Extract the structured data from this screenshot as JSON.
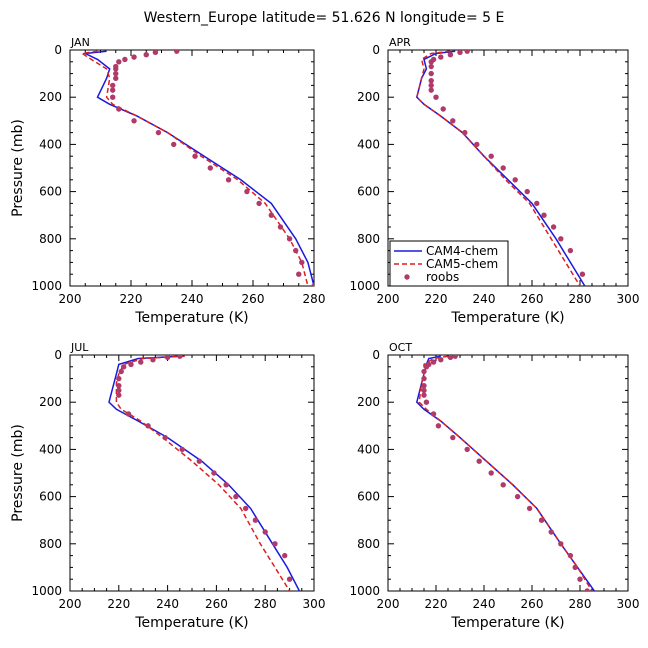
{
  "title": "Western_Europe  latitude= 51.626 N longitude= 5 E",
  "colors": {
    "cam4": "#1a1adf",
    "cam5": "#dd1f1f",
    "roobs": "#b03a6a",
    "axis": "#000000"
  },
  "legend": {
    "items": [
      "CAM4-chem",
      "CAM5-chem",
      "roobs"
    ]
  },
  "chart_data": [
    {
      "type": "line",
      "panel": "JAN",
      "xlabel": "Temperature (K)",
      "ylabel": "Pressure (mb)",
      "xlim": [
        200,
        280
      ],
      "ylim": [
        1000,
        0
      ],
      "xticks": [
        "200",
        "220",
        "240",
        "260",
        "280"
      ],
      "yticks": [
        "0",
        "200",
        "400",
        "600",
        "800",
        "1000"
      ],
      "series": [
        {
          "name": "CAM4-chem",
          "style": "solid",
          "x": [
            212,
            205,
            209,
            213,
            212,
            209,
            213,
            222,
            232,
            244,
            256,
            266,
            274,
            278,
            280
          ],
          "y": [
            5,
            15,
            40,
            80,
            120,
            200,
            230,
            280,
            350,
            450,
            550,
            650,
            800,
            900,
            1000
          ]
        },
        {
          "name": "CAM5-chem",
          "style": "dashed",
          "x": [
            209,
            204,
            207,
            212,
            213,
            212,
            214,
            222,
            232,
            243,
            255,
            264,
            272,
            276,
            278
          ],
          "y": [
            5,
            15,
            40,
            80,
            120,
            200,
            230,
            280,
            350,
            450,
            550,
            650,
            800,
            900,
            1000
          ]
        },
        {
          "name": "roobs",
          "style": "points",
          "x": [
            235,
            228,
            225,
            221,
            218,
            216,
            215,
            215,
            215,
            215,
            214,
            214,
            214,
            216,
            221,
            229,
            234,
            241,
            246,
            252,
            258,
            262,
            266,
            269,
            272,
            274,
            276,
            275,
            280
          ],
          "y": [
            5,
            10,
            20,
            30,
            40,
            50,
            70,
            80,
            100,
            120,
            150,
            170,
            200,
            250,
            300,
            350,
            400,
            450,
            500,
            550,
            600,
            650,
            700,
            750,
            800,
            850,
            900,
            950,
            1000
          ]
        }
      ]
    },
    {
      "type": "line",
      "panel": "APR",
      "xlabel": "Temperature (K)",
      "ylabel": "",
      "xlim": [
        200,
        300
      ],
      "ylim": [
        1000,
        0
      ],
      "xticks": [
        "200",
        "220",
        "240",
        "260",
        "280",
        "300"
      ],
      "yticks": [
        "0",
        "200",
        "400",
        "600",
        "800",
        "1000"
      ],
      "series": [
        {
          "name": "CAM4-chem",
          "style": "solid",
          "x": [
            228,
            220,
            215,
            216,
            214,
            212,
            215,
            222,
            231,
            240,
            250,
            260,
            270,
            276,
            282
          ],
          "y": [
            5,
            15,
            40,
            80,
            120,
            200,
            230,
            280,
            350,
            450,
            550,
            650,
            800,
            900,
            1000
          ]
        },
        {
          "name": "CAM5-chem",
          "style": "dashed",
          "x": [
            226,
            218,
            214,
            215,
            214,
            212,
            215,
            222,
            231,
            240,
            249,
            259,
            268,
            274,
            280
          ],
          "y": [
            5,
            15,
            40,
            80,
            120,
            200,
            230,
            280,
            350,
            450,
            550,
            650,
            800,
            900,
            1000
          ]
        },
        {
          "name": "roobs",
          "style": "points",
          "x": [
            233,
            230,
            226,
            222,
            219,
            218,
            218,
            218,
            218,
            218,
            218,
            220,
            223,
            227,
            232,
            237,
            243,
            248,
            253,
            258,
            262,
            265,
            269,
            272,
            276,
            281
          ],
          "y": [
            5,
            10,
            20,
            30,
            40,
            50,
            70,
            100,
            130,
            150,
            170,
            200,
            250,
            300,
            350,
            400,
            450,
            500,
            550,
            600,
            650,
            700,
            750,
            800,
            850,
            950
          ]
        }
      ]
    },
    {
      "type": "line",
      "panel": "JUL",
      "xlabel": "Temperature (K)",
      "ylabel": "Pressure (mb)",
      "xlim": [
        200,
        300
      ],
      "ylim": [
        1000,
        0
      ],
      "xticks": [
        "200",
        "220",
        "240",
        "260",
        "280",
        "300"
      ],
      "yticks": [
        "0",
        "200",
        "400",
        "600",
        "800",
        "1000"
      ],
      "series": [
        {
          "name": "CAM4-chem",
          "style": "solid",
          "x": [
            245,
            228,
            220,
            219,
            218,
            216,
            219,
            228,
            240,
            254,
            265,
            274,
            283,
            289,
            294
          ],
          "y": [
            5,
            15,
            40,
            80,
            120,
            200,
            230,
            280,
            350,
            450,
            550,
            650,
            800,
            900,
            1000
          ]
        },
        {
          "name": "CAM5-chem",
          "style": "dashed",
          "x": [
            247,
            230,
            222,
            220,
            219,
            219,
            221,
            229,
            238,
            250,
            261,
            270,
            278,
            284,
            290
          ],
          "y": [
            5,
            15,
            40,
            80,
            120,
            200,
            230,
            280,
            350,
            450,
            550,
            650,
            800,
            900,
            1000
          ]
        },
        {
          "name": "roobs",
          "style": "points",
          "x": [
            245,
            240,
            234,
            229,
            225,
            222,
            221,
            220,
            220,
            220,
            220,
            224,
            232,
            239,
            246,
            253,
            259,
            264,
            268,
            272,
            276,
            280,
            284,
            288,
            290
          ],
          "y": [
            5,
            10,
            20,
            30,
            40,
            50,
            70,
            100,
            130,
            150,
            170,
            250,
            300,
            350,
            400,
            450,
            500,
            550,
            600,
            650,
            700,
            750,
            800,
            850,
            950
          ]
        }
      ]
    },
    {
      "type": "line",
      "panel": "OCT",
      "xlabel": "Temperature (K)",
      "ylabel": "",
      "xlim": [
        200,
        300
      ],
      "ylim": [
        1000,
        0
      ],
      "xticks": [
        "200",
        "220",
        "240",
        "260",
        "280",
        "300"
      ],
      "yticks": [
        "0",
        "200",
        "400",
        "600",
        "800",
        "1000"
      ],
      "series": [
        {
          "name": "CAM4-chem",
          "style": "solid",
          "x": [
            222,
            217,
            216,
            215,
            214,
            212,
            215,
            222,
            230,
            241,
            252,
            262,
            272,
            279,
            286
          ],
          "y": [
            5,
            15,
            40,
            80,
            120,
            200,
            230,
            280,
            350,
            450,
            550,
            650,
            800,
            900,
            1000
          ]
        },
        {
          "name": "CAM5-chem",
          "style": "dashed",
          "x": [
            225,
            219,
            215,
            215,
            214,
            213,
            216,
            222,
            230,
            241,
            252,
            262,
            272,
            279,
            285
          ],
          "y": [
            5,
            15,
            40,
            80,
            120,
            200,
            230,
            280,
            350,
            450,
            550,
            650,
            800,
            900,
            1000
          ]
        },
        {
          "name": "roobs",
          "style": "points",
          "x": [
            228,
            226,
            222,
            219,
            217,
            216,
            215,
            215,
            215,
            215,
            215,
            216,
            219,
            221,
            227,
            233,
            238,
            243,
            248,
            254,
            259,
            264,
            268,
            272,
            276,
            278,
            280,
            283
          ],
          "y": [
            5,
            10,
            20,
            30,
            40,
            50,
            70,
            100,
            130,
            150,
            170,
            200,
            250,
            300,
            350,
            400,
            450,
            500,
            550,
            600,
            650,
            700,
            750,
            800,
            850,
            900,
            950,
            1000
          ]
        }
      ]
    }
  ]
}
